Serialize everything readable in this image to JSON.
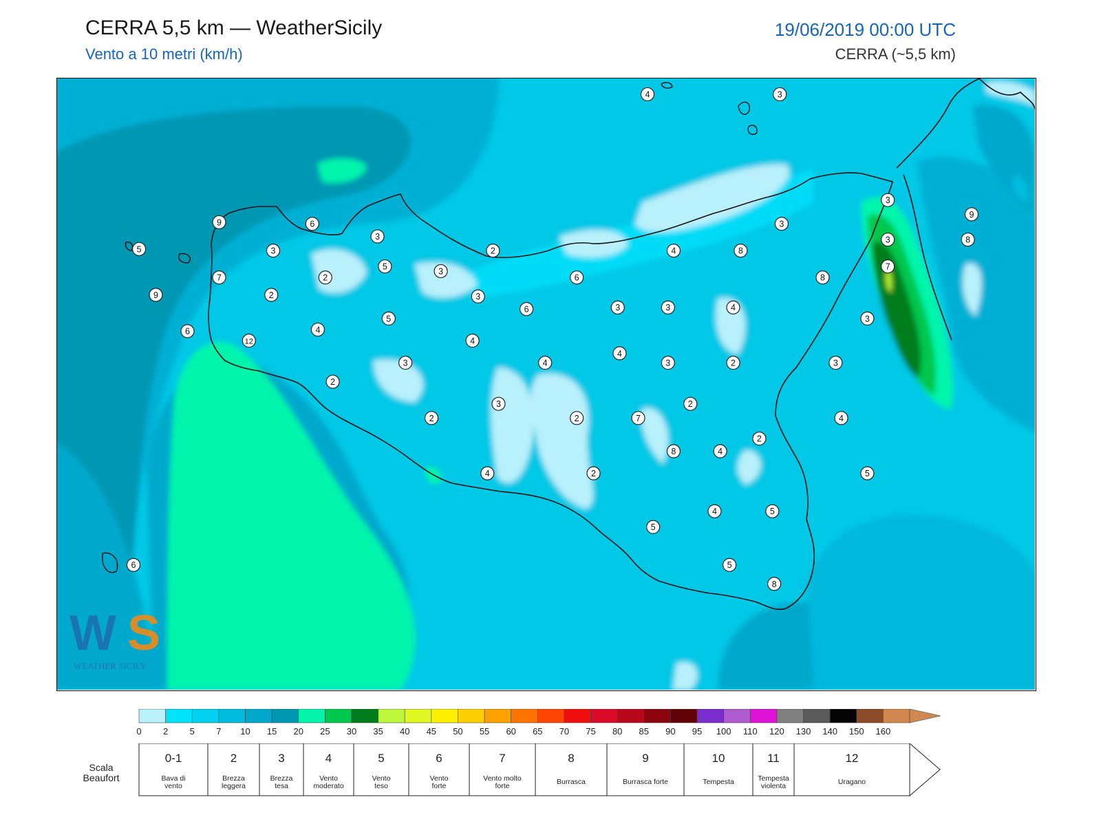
{
  "header": {
    "title": "CERRA 5,5 km — WeatherSicily",
    "subtitle": "Vento a 10 metri (km/h)",
    "datetime": "19/06/2019 00:00 UTC",
    "model": "CERRA (~5,5 km)"
  },
  "logo": {
    "icon": "weather-sicily-logo",
    "text": "WEATHER SICILY"
  },
  "colors": {
    "land_outline": "#111111",
    "base_field": "#00c8e6"
  },
  "colorscale": {
    "ticks": [
      "0",
      "2",
      "5",
      "7",
      "10",
      "15",
      "20",
      "25",
      "30",
      "35",
      "40",
      "45",
      "50",
      "55",
      "60",
      "65",
      "70",
      "75",
      "80",
      "85",
      "90",
      "95",
      "100",
      "110",
      "120",
      "130",
      "140",
      "150",
      "160"
    ],
    "colors": [
      "#b8f0fb",
      "#00e3fb",
      "#00d0ef",
      "#00bde0",
      "#00a9cc",
      "#0097b3",
      "#00f5ab",
      "#00c74d",
      "#007d1d",
      "#bdf93a",
      "#dff821",
      "#fff000",
      "#ffcf00",
      "#ffa100",
      "#ff7400",
      "#ff4600",
      "#f20e0e",
      "#dc0a28",
      "#b8081a",
      "#8c0410",
      "#630108",
      "#7b2ccc",
      "#b05ad0",
      "#e112d8",
      "#808080",
      "#5a5a5a",
      "#050505",
      "#8c4a28",
      "#d0884f"
    ]
  },
  "beaufort": {
    "label": "Scala Beaufort",
    "classes": [
      {
        "number": "0-1",
        "name": "Bava di vento"
      },
      {
        "number": "2",
        "name": "Brezza leggera"
      },
      {
        "number": "3",
        "name": "Brezza tesa"
      },
      {
        "number": "4",
        "name": "Vento moderato"
      },
      {
        "number": "5",
        "name": "Vento teso"
      },
      {
        "number": "6",
        "name": "Vento forte"
      },
      {
        "number": "7",
        "name": "Vento molto forte"
      },
      {
        "number": "8",
        "name": "Burrasca"
      },
      {
        "number": "9",
        "name": "Burrasca forte"
      },
      {
        "number": "10",
        "name": "Tempesta"
      },
      {
        "number": "11",
        "name": "Tempesta violenta"
      },
      {
        "number": "12",
        "name": "Uragano"
      }
    ]
  },
  "stations": [
    {
      "value": "4",
      "lat": 39.02,
      "lon": 14.37
    },
    {
      "value": "3",
      "lat": 39.02,
      "lon": 15.08
    },
    {
      "value": "3",
      "lat": 38.35,
      "lon": 15.66
    },
    {
      "value": "9",
      "lat": 38.26,
      "lon": 16.11
    },
    {
      "value": "9",
      "lat": 38.21,
      "lon": 12.07
    },
    {
      "value": "6",
      "lat": 38.2,
      "lon": 12.57
    },
    {
      "value": "3",
      "lat": 38.12,
      "lon": 12.92
    },
    {
      "value": "3",
      "lat": 38.2,
      "lon": 15.09
    },
    {
      "value": "3",
      "lat": 38.1,
      "lon": 15.66
    },
    {
      "value": "8",
      "lat": 38.1,
      "lon": 16.09
    },
    {
      "value": "5",
      "lat": 38.04,
      "lon": 11.64
    },
    {
      "value": "3",
      "lat": 38.03,
      "lon": 12.36
    },
    {
      "value": "2",
      "lat": 38.03,
      "lon": 13.54
    },
    {
      "value": "4",
      "lat": 38.03,
      "lon": 14.51
    },
    {
      "value": "8",
      "lat": 38.03,
      "lon": 14.87
    },
    {
      "value": "5",
      "lat": 37.93,
      "lon": 12.96
    },
    {
      "value": "3",
      "lat": 37.9,
      "lon": 13.26
    },
    {
      "value": "7",
      "lat": 37.93,
      "lon": 15.66
    },
    {
      "value": "7",
      "lat": 37.86,
      "lon": 12.07
    },
    {
      "value": "2",
      "lat": 37.86,
      "lon": 12.64
    },
    {
      "value": "6",
      "lat": 37.86,
      "lon": 13.99
    },
    {
      "value": "8",
      "lat": 37.86,
      "lon": 15.31
    },
    {
      "value": "9",
      "lat": 37.75,
      "lon": 11.73
    },
    {
      "value": "2",
      "lat": 37.75,
      "lon": 12.35
    },
    {
      "value": "3",
      "lat": 37.74,
      "lon": 13.46
    },
    {
      "value": "6",
      "lat": 37.66,
      "lon": 13.72
    },
    {
      "value": "3",
      "lat": 37.67,
      "lon": 14.21
    },
    {
      "value": "3",
      "lat": 37.67,
      "lon": 14.48
    },
    {
      "value": "4",
      "lat": 37.67,
      "lon": 14.83
    },
    {
      "value": "5",
      "lat": 37.6,
      "lon": 12.98
    },
    {
      "value": "3",
      "lat": 37.6,
      "lon": 15.55
    },
    {
      "value": "6",
      "lat": 37.52,
      "lon": 11.9
    },
    {
      "value": "4",
      "lat": 37.53,
      "lon": 12.6
    },
    {
      "value": "12",
      "lat": 37.46,
      "lon": 12.23
    },
    {
      "value": "4",
      "lat": 37.46,
      "lon": 13.43
    },
    {
      "value": "4",
      "lat": 37.38,
      "lon": 14.22
    },
    {
      "value": "3",
      "lat": 37.32,
      "lon": 13.07
    },
    {
      "value": "4",
      "lat": 37.32,
      "lon": 13.82
    },
    {
      "value": "3",
      "lat": 37.32,
      "lon": 14.48
    },
    {
      "value": "2",
      "lat": 37.32,
      "lon": 14.83
    },
    {
      "value": "3",
      "lat": 37.32,
      "lon": 15.38
    },
    {
      "value": "2",
      "lat": 37.2,
      "lon": 12.68
    },
    {
      "value": "3",
      "lat": 37.06,
      "lon": 13.57
    },
    {
      "value": "2",
      "lat": 37.06,
      "lon": 14.6
    },
    {
      "value": "2",
      "lat": 36.97,
      "lon": 13.21
    },
    {
      "value": "2",
      "lat": 36.97,
      "lon": 13.99
    },
    {
      "value": "7",
      "lat": 36.97,
      "lon": 14.32
    },
    {
      "value": "4",
      "lat": 36.97,
      "lon": 15.41
    },
    {
      "value": "2",
      "lat": 36.84,
      "lon": 14.97
    },
    {
      "value": "8",
      "lat": 36.76,
      "lon": 14.51
    },
    {
      "value": "4",
      "lat": 36.76,
      "lon": 14.76
    },
    {
      "value": "4",
      "lat": 36.62,
      "lon": 13.51
    },
    {
      "value": "2",
      "lat": 36.62,
      "lon": 14.08
    },
    {
      "value": "5",
      "lat": 36.62,
      "lon": 15.55
    },
    {
      "value": "4",
      "lat": 36.38,
      "lon": 14.73
    },
    {
      "value": "5",
      "lat": 36.38,
      "lon": 15.04
    },
    {
      "value": "5",
      "lat": 36.28,
      "lon": 14.4
    },
    {
      "value": "6",
      "lat": 36.04,
      "lon": 11.61
    },
    {
      "value": "5",
      "lat": 36.04,
      "lon": 14.81
    },
    {
      "value": "8",
      "lat": 35.92,
      "lon": 15.05
    }
  ]
}
